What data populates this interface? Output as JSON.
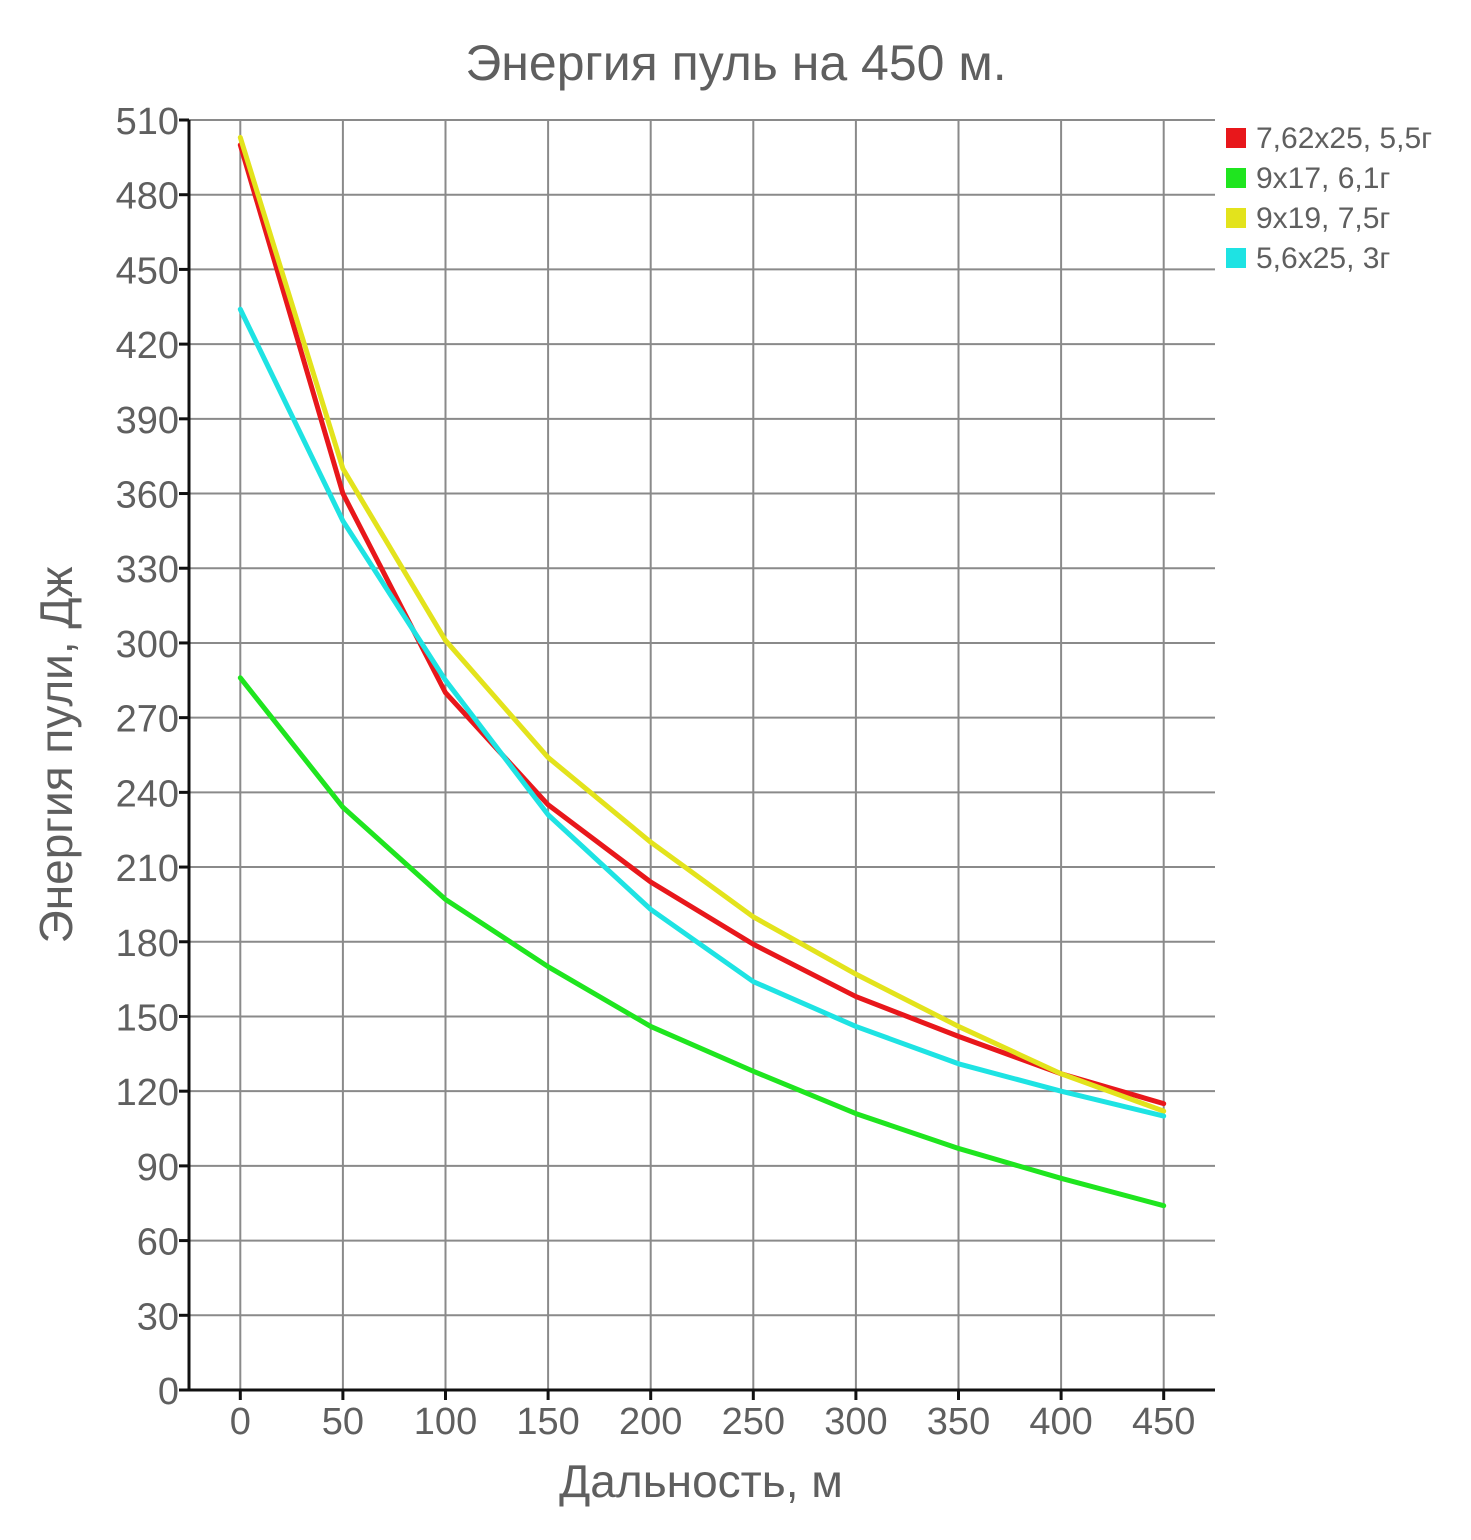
{
  "chart_data": {
    "type": "line",
    "title": "Энергия пуль на 450 м.",
    "xlabel": "Дальность, м",
    "ylabel": "Энергия пули, Дж",
    "x": [
      0,
      50,
      100,
      150,
      200,
      250,
      300,
      350,
      400,
      450
    ],
    "x_tick_labels": [
      "0",
      "50",
      "100",
      "150",
      "200",
      "250",
      "300",
      "350",
      "400",
      "450"
    ],
    "y_tick_labels": [
      "0",
      "30",
      "60",
      "90",
      "120",
      "150",
      "180",
      "210",
      "240",
      "270",
      "300",
      "330",
      "360",
      "390",
      "420",
      "450",
      "480",
      "510"
    ],
    "xlim": [
      -25,
      475
    ],
    "ylim": [
      0,
      510
    ],
    "grid": true,
    "legend_position": "right",
    "series": [
      {
        "name": "7,62x25, 5,5г",
        "color": "#e8171b",
        "values": [
          500,
          360,
          280,
          235,
          204,
          179,
          158,
          142,
          127,
          115
        ]
      },
      {
        "name": "9x17, 6,1г",
        "color": "#1fe51f",
        "values": [
          286,
          234,
          197,
          170,
          146,
          128,
          111,
          97,
          85,
          74
        ]
      },
      {
        "name": "9x19, 7,5г",
        "color": "#e3e31c",
        "values": [
          503,
          370,
          301,
          254,
          220,
          190,
          167,
          146,
          127,
          112
        ]
      },
      {
        "name": "5,6x25, 3г",
        "color": "#1ee3e3",
        "values": [
          434,
          349,
          285,
          231,
          193,
          164,
          146,
          131,
          120,
          110
        ]
      }
    ]
  }
}
